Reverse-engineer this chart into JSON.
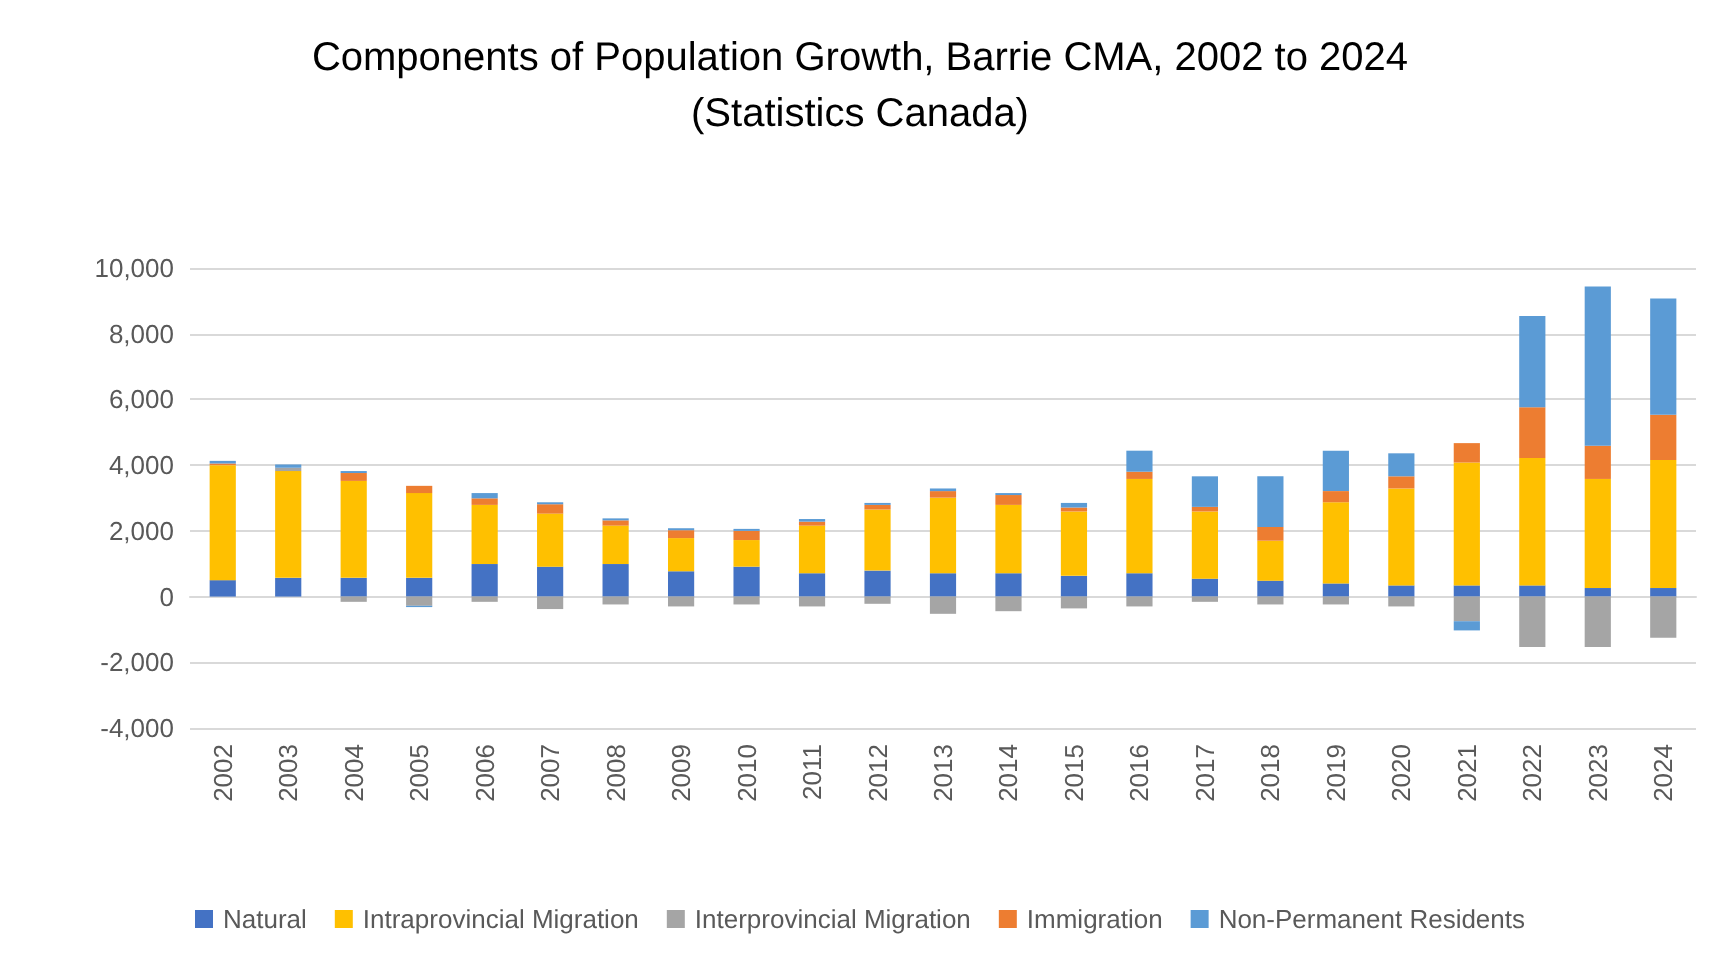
{
  "chart_data": {
    "type": "bar",
    "title": "Components of Population Growth, Barrie CMA, 2002 to 2024\n(Statistics Canada)",
    "stacked": true,
    "grid": "y",
    "legend": "bottom",
    "categories": [
      "2002",
      "2003",
      "2004",
      "2005",
      "2006",
      "2007",
      "2008",
      "2009",
      "2010",
      "2011",
      "2012",
      "2013",
      "2014",
      "2015",
      "2016",
      "2017",
      "2018",
      "2019",
      "2020",
      "2021",
      "2022",
      "2023",
      "2024"
    ],
    "series": [
      {
        "name": "Natural",
        "color": "#4472c4",
        "values": [
          500,
          570,
          570,
          570,
          990,
          910,
          990,
          770,
          910,
          710,
          790,
          710,
          710,
          630,
          710,
          545,
          485,
          400,
          340,
          340,
          340,
          260,
          260
        ]
      },
      {
        "name": "Intraprovincial Migration",
        "color": "#ffc000",
        "values": [
          3500,
          3250,
          2950,
          2580,
          1800,
          1615,
          1170,
          1010,
          810,
          1450,
          1860,
          2300,
          2080,
          1960,
          2870,
          2045,
          1215,
          2470,
          2950,
          3740,
          3880,
          3320,
          3900
        ]
      },
      {
        "name": "Interprovincial Migration",
        "color": "#a5a5a5",
        "values": [
          0,
          100,
          -160,
          -280,
          -160,
          -380,
          -240,
          -300,
          -240,
          -300,
          -220,
          -525,
          -445,
          -360,
          -300,
          -160,
          -240,
          -240,
          -300,
          -750,
          -1535,
          -1535,
          -1250
        ]
      },
      {
        "name": "Immigration",
        "color": "#ed7d31",
        "values": [
          50,
          0,
          240,
          220,
          200,
          285,
          160,
          240,
          280,
          120,
          140,
          200,
          300,
          120,
          220,
          140,
          420,
          340,
          370,
          590,
          1540,
          1010,
          1370
        ]
      },
      {
        "name": "Non-Permanent Residents",
        "color": "#5b9bd5",
        "values": [
          80,
          100,
          60,
          -40,
          160,
          60,
          60,
          60,
          60,
          80,
          60,
          80,
          60,
          140,
          640,
          930,
          1540,
          1230,
          700,
          -280,
          2780,
          4850,
          3540
        ]
      }
    ],
    "ylim": [
      -4000,
      10000
    ],
    "yticks": [
      {
        "value": -4000,
        "label": "-4,000"
      },
      {
        "value": -2000,
        "label": "-2,000"
      },
      0,
      {
        "value": 2000,
        "label": "2,000"
      },
      {
        "value": 4000,
        "label": "4,000"
      },
      {
        "value": 6000,
        "label": "6,000"
      },
      {
        "value": 8000,
        "label": "8,000"
      },
      {
        "value": 10000,
        "label": "10,000"
      }
    ]
  }
}
